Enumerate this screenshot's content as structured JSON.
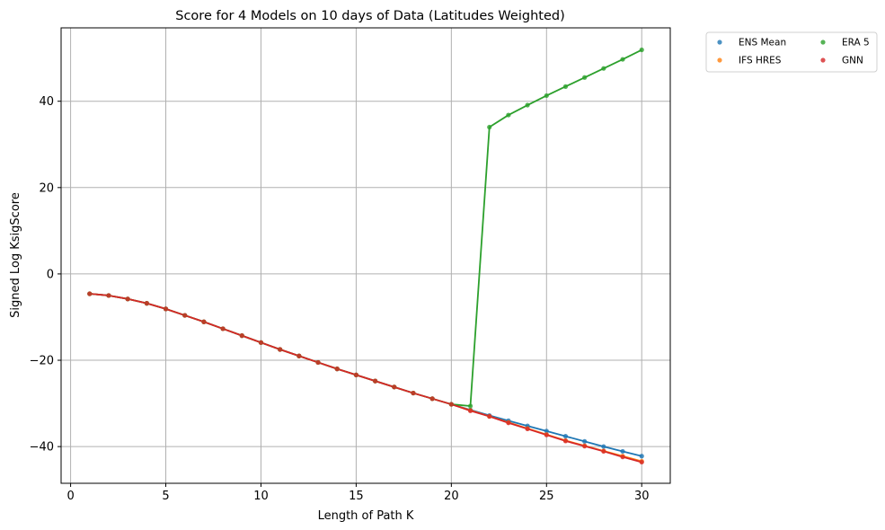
{
  "chart_data": {
    "type": "line",
    "title": "Score for 4 Models on 10 days of Data (Latitudes Weighted)",
    "xlabel": "Length of Path K",
    "ylabel": "Signed Log KsigScore",
    "xlim": [
      -0.5,
      31.5
    ],
    "ylim": [
      -48.5,
      57
    ],
    "xticks": [
      0,
      5,
      10,
      15,
      20,
      25,
      30
    ],
    "yticks": [
      -40,
      -20,
      0,
      20,
      40
    ],
    "grid": true,
    "legend_position": "outside-top-right",
    "x": [
      1,
      2,
      3,
      4,
      5,
      6,
      7,
      8,
      9,
      10,
      11,
      12,
      13,
      14,
      15,
      16,
      17,
      18,
      19,
      20,
      21,
      22,
      23,
      24,
      25,
      26,
      27,
      28,
      29,
      30
    ],
    "series": [
      {
        "name": "ENS Mean",
        "color": "#1f77b4",
        "values": [
          -4.6,
          -5.0,
          -5.8,
          -6.8,
          -8.1,
          -9.6,
          -11.1,
          -12.7,
          -14.3,
          -15.9,
          -17.5,
          -19.0,
          -20.5,
          -22.0,
          -23.4,
          -24.8,
          -26.2,
          -27.6,
          -28.9,
          -30.2,
          -31.5,
          -32.8,
          -34.0,
          -35.2,
          -36.4,
          -37.6,
          -38.8,
          -40.0,
          -41.1,
          -42.2
        ]
      },
      {
        "name": "IFS HRES",
        "color": "#ff7f0e",
        "values": [
          -4.6,
          -5.0,
          -5.8,
          -6.8,
          -8.1,
          -9.6,
          -11.1,
          -12.7,
          -14.3,
          -15.9,
          -17.5,
          -19.0,
          -20.5,
          -22.0,
          -23.4,
          -24.8,
          -26.2,
          -27.6,
          -28.9,
          -30.2,
          -31.6,
          -33.0,
          -34.4,
          -35.8,
          -37.2,
          -38.6,
          -39.8,
          -41.0,
          -42.2,
          -43.4
        ]
      },
      {
        "name": "ERA 5",
        "color": "#2ca02c",
        "values": [
          -4.6,
          -5.0,
          -5.8,
          -6.8,
          -8.1,
          -9.6,
          -11.1,
          -12.7,
          -14.3,
          -15.9,
          -17.5,
          -19.0,
          -20.5,
          -22.0,
          -23.4,
          -24.8,
          -26.2,
          -27.6,
          -28.9,
          -30.2,
          -30.6,
          34.0,
          36.8,
          39.1,
          41.3,
          43.4,
          45.5,
          47.6,
          49.7,
          51.9
        ]
      },
      {
        "name": "GNN",
        "color": "#d62728",
        "values": [
          -4.6,
          -5.0,
          -5.8,
          -6.8,
          -8.1,
          -9.6,
          -11.1,
          -12.7,
          -14.3,
          -15.9,
          -17.5,
          -19.0,
          -20.5,
          -22.0,
          -23.4,
          -24.8,
          -26.2,
          -27.6,
          -28.9,
          -30.2,
          -31.7,
          -33.0,
          -34.5,
          -35.9,
          -37.3,
          -38.7,
          -39.9,
          -41.1,
          -42.4,
          -43.6
        ]
      }
    ]
  }
}
